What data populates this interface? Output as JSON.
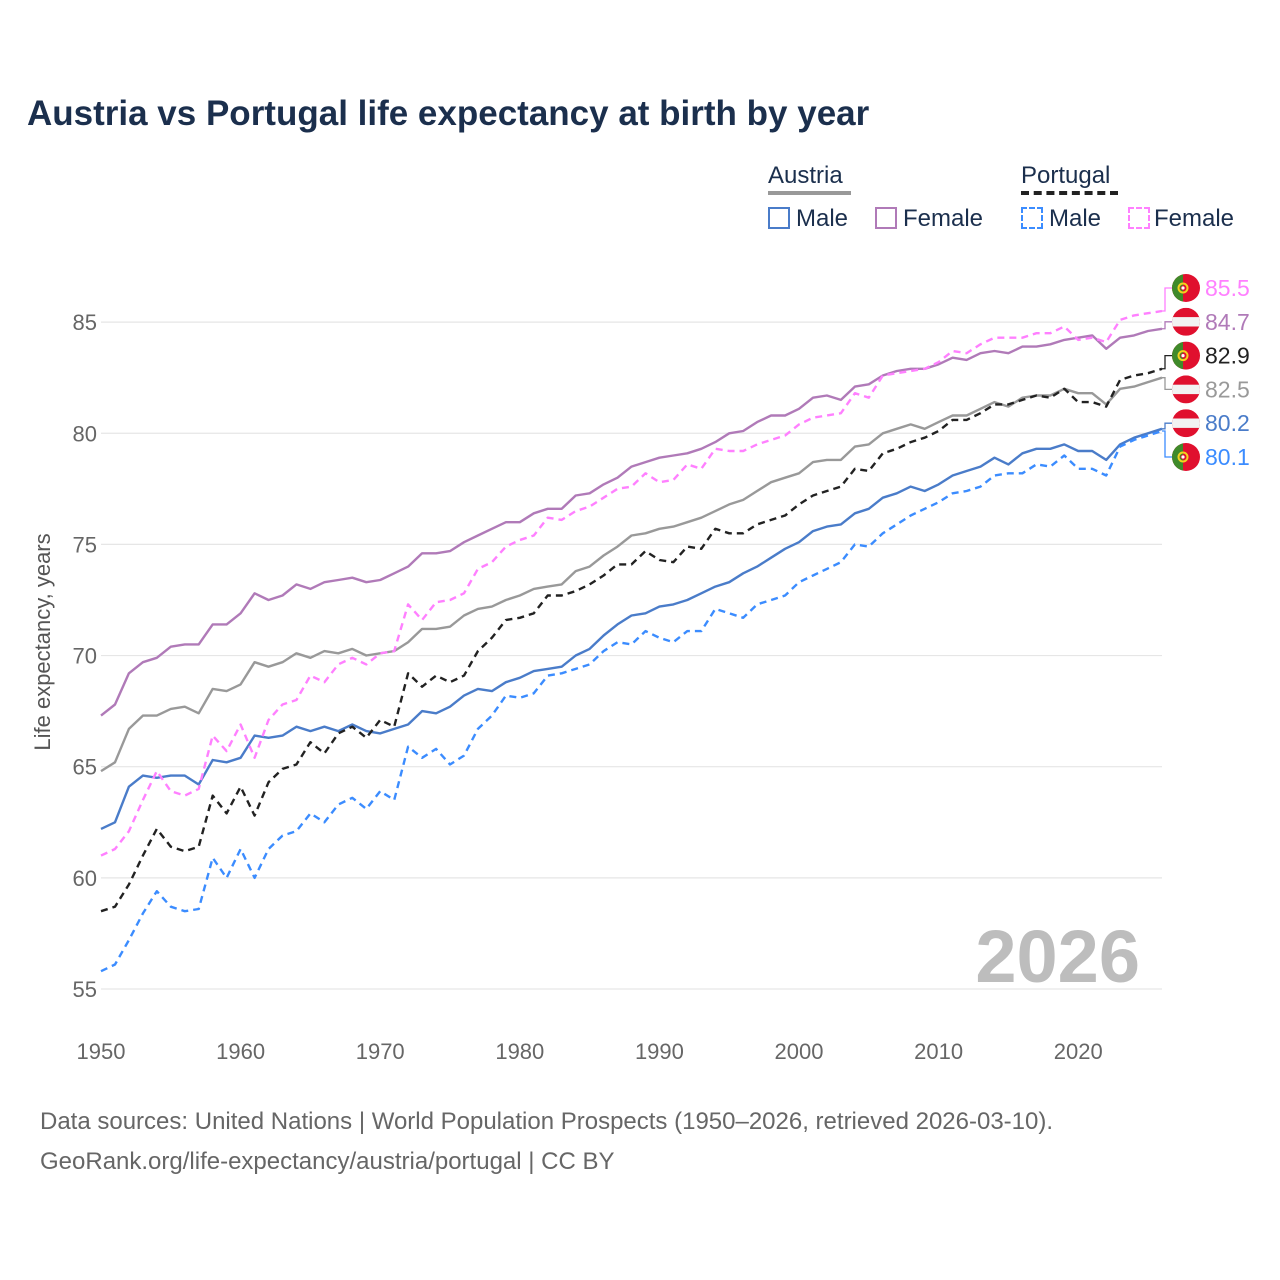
{
  "title": "Austria vs Portugal life expectancy at birth by year",
  "legend": {
    "groups": [
      {
        "name": "Austria",
        "items": [
          "Male",
          "Female"
        ]
      },
      {
        "name": "Portugal",
        "items": [
          "Male",
          "Female"
        ]
      }
    ]
  },
  "watermark_year": "2026",
  "source_line1": "Data sources: United Nations | World Population Prospects (1950–2026, retrieved 2026-03-10).",
  "source_line2": "GeoRank.org/life-expectancy/austria/portugal | CC BY",
  "chart_data": {
    "type": "line",
    "title": "Austria vs Portugal life expectancy at birth by year",
    "xlabel": "",
    "ylabel": "Life expectancy, years",
    "xlim": [
      1950,
      2026
    ],
    "ylim": [
      55,
      87
    ],
    "xticks": [
      1950,
      1960,
      1970,
      1980,
      1990,
      2000,
      2010,
      2020
    ],
    "yticks": [
      55,
      60,
      65,
      70,
      75,
      80,
      85
    ],
    "grid": "horizontal",
    "legend_position": "top-right",
    "x_start": 1950,
    "series": [
      {
        "name": "Austria Female",
        "country": "Austria",
        "color": "#b07ab8",
        "dashed": false,
        "flag": "austria",
        "end_label": "84.7",
        "values": [
          67.3,
          67.8,
          69.2,
          69.7,
          69.9,
          70.4,
          70.5,
          70.5,
          71.4,
          71.4,
          71.9,
          72.8,
          72.5,
          72.7,
          73.2,
          73.0,
          73.3,
          73.4,
          73.5,
          73.3,
          73.4,
          73.7,
          74.0,
          74.6,
          74.6,
          74.7,
          75.1,
          75.4,
          75.7,
          76.0,
          76.0,
          76.4,
          76.6,
          76.6,
          77.2,
          77.3,
          77.7,
          78.0,
          78.5,
          78.7,
          78.9,
          79.0,
          79.1,
          79.3,
          79.6,
          80.0,
          80.1,
          80.5,
          80.8,
          80.8,
          81.1,
          81.6,
          81.7,
          81.5,
          82.1,
          82.2,
          82.6,
          82.8,
          82.9,
          82.9,
          83.1,
          83.4,
          83.3,
          83.6,
          83.7,
          83.6,
          83.9,
          83.9,
          84.0,
          84.2,
          84.3,
          84.4,
          83.8,
          84.3,
          84.4,
          84.6,
          84.7
        ]
      },
      {
        "name": "Austria Total",
        "country": "Austria",
        "color": "#999999",
        "dashed": false,
        "flag": "austria",
        "end_label": "82.5",
        "values": [
          64.8,
          65.2,
          66.7,
          67.3,
          67.3,
          67.6,
          67.7,
          67.4,
          68.5,
          68.4,
          68.7,
          69.7,
          69.5,
          69.7,
          70.1,
          69.9,
          70.2,
          70.1,
          70.3,
          70.0,
          70.1,
          70.2,
          70.6,
          71.2,
          71.2,
          71.3,
          71.8,
          72.1,
          72.2,
          72.5,
          72.7,
          73.0,
          73.1,
          73.2,
          73.8,
          74.0,
          74.5,
          74.9,
          75.4,
          75.5,
          75.7,
          75.8,
          76.0,
          76.2,
          76.5,
          76.8,
          77.0,
          77.4,
          77.8,
          78.0,
          78.2,
          78.7,
          78.8,
          78.8,
          79.4,
          79.5,
          80.0,
          80.2,
          80.4,
          80.2,
          80.5,
          80.8,
          80.8,
          81.1,
          81.4,
          81.2,
          81.6,
          81.7,
          81.7,
          82.0,
          81.8,
          81.8,
          81.3,
          82.0,
          82.1,
          82.3,
          82.5
        ]
      },
      {
        "name": "Austria Male",
        "country": "Austria",
        "color": "#4a7cc9",
        "dashed": false,
        "flag": "austria",
        "end_label": "80.2",
        "values": [
          62.2,
          62.5,
          64.1,
          64.6,
          64.5,
          64.6,
          64.6,
          64.2,
          65.3,
          65.2,
          65.4,
          66.4,
          66.3,
          66.4,
          66.8,
          66.6,
          66.8,
          66.6,
          66.9,
          66.6,
          66.5,
          66.7,
          66.9,
          67.5,
          67.4,
          67.7,
          68.2,
          68.5,
          68.4,
          68.8,
          69.0,
          69.3,
          69.4,
          69.5,
          70.0,
          70.3,
          70.9,
          71.4,
          71.8,
          71.9,
          72.2,
          72.3,
          72.5,
          72.8,
          73.1,
          73.3,
          73.7,
          74.0,
          74.4,
          74.8,
          75.1,
          75.6,
          75.8,
          75.9,
          76.4,
          76.6,
          77.1,
          77.3,
          77.6,
          77.4,
          77.7,
          78.1,
          78.3,
          78.5,
          78.9,
          78.6,
          79.1,
          79.3,
          79.3,
          79.5,
          79.2,
          79.2,
          78.8,
          79.5,
          79.8,
          80.0,
          80.2
        ]
      },
      {
        "name": "Portugal Female",
        "country": "Portugal",
        "color": "#ff80ff",
        "dashed": true,
        "flag": "portugal",
        "end_label": "85.5",
        "values": [
          61.0,
          61.3,
          62.1,
          63.5,
          64.8,
          63.9,
          63.7,
          64.0,
          66.4,
          65.7,
          66.9,
          65.4,
          67.1,
          67.8,
          68.0,
          69.1,
          68.8,
          69.6,
          69.9,
          69.6,
          70.1,
          70.2,
          72.3,
          71.6,
          72.4,
          72.5,
          72.8,
          73.9,
          74.2,
          74.9,
          75.2,
          75.4,
          76.2,
          76.1,
          76.5,
          76.7,
          77.1,
          77.5,
          77.6,
          78.2,
          77.8,
          77.9,
          78.6,
          78.4,
          79.3,
          79.2,
          79.2,
          79.5,
          79.7,
          79.9,
          80.4,
          80.7,
          80.8,
          80.9,
          81.8,
          81.6,
          82.6,
          82.7,
          82.8,
          82.9,
          83.2,
          83.7,
          83.6,
          84.0,
          84.3,
          84.3,
          84.3,
          84.5,
          84.5,
          84.8,
          84.2,
          84.3,
          84.1,
          85.1,
          85.3,
          85.4,
          85.5
        ]
      },
      {
        "name": "Portugal Total",
        "country": "Portugal",
        "color": "#222222",
        "dashed": true,
        "flag": "portugal",
        "end_label": "82.9",
        "values": [
          58.5,
          58.7,
          59.7,
          61.0,
          62.2,
          61.4,
          61.2,
          61.4,
          63.7,
          62.9,
          64.1,
          62.8,
          64.3,
          64.9,
          65.1,
          66.1,
          65.6,
          66.5,
          66.8,
          66.3,
          67.1,
          66.8,
          69.2,
          68.6,
          69.1,
          68.8,
          69.1,
          70.2,
          70.8,
          71.6,
          71.7,
          71.9,
          72.7,
          72.7,
          72.9,
          73.2,
          73.6,
          74.1,
          74.1,
          74.7,
          74.3,
          74.2,
          74.9,
          74.8,
          75.7,
          75.5,
          75.5,
          75.9,
          76.1,
          76.3,
          76.8,
          77.2,
          77.4,
          77.6,
          78.4,
          78.3,
          79.1,
          79.3,
          79.6,
          79.8,
          80.1,
          80.6,
          80.6,
          80.9,
          81.3,
          81.3,
          81.5,
          81.7,
          81.6,
          82.0,
          81.4,
          81.4,
          81.2,
          82.4,
          82.6,
          82.7,
          82.9
        ]
      },
      {
        "name": "Portugal Male",
        "country": "Portugal",
        "color": "#3b8cff",
        "dashed": true,
        "flag": "portugal",
        "end_label": "80.1",
        "values": [
          55.8,
          56.1,
          57.2,
          58.4,
          59.4,
          58.7,
          58.5,
          58.6,
          60.9,
          60.0,
          61.3,
          60.0,
          61.3,
          61.9,
          62.1,
          62.9,
          62.5,
          63.3,
          63.6,
          63.1,
          63.9,
          63.5,
          65.9,
          65.4,
          65.8,
          65.1,
          65.5,
          66.7,
          67.3,
          68.2,
          68.1,
          68.3,
          69.1,
          69.2,
          69.4,
          69.6,
          70.2,
          70.6,
          70.5,
          71.1,
          70.8,
          70.6,
          71.1,
          71.1,
          72.1,
          71.9,
          71.7,
          72.3,
          72.5,
          72.7,
          73.3,
          73.6,
          73.9,
          74.2,
          75.0,
          74.9,
          75.5,
          75.9,
          76.3,
          76.6,
          76.9,
          77.3,
          77.4,
          77.6,
          78.1,
          78.2,
          78.2,
          78.6,
          78.5,
          79.0,
          78.4,
          78.4,
          78.1,
          79.4,
          79.7,
          79.9,
          80.1
        ]
      }
    ]
  }
}
